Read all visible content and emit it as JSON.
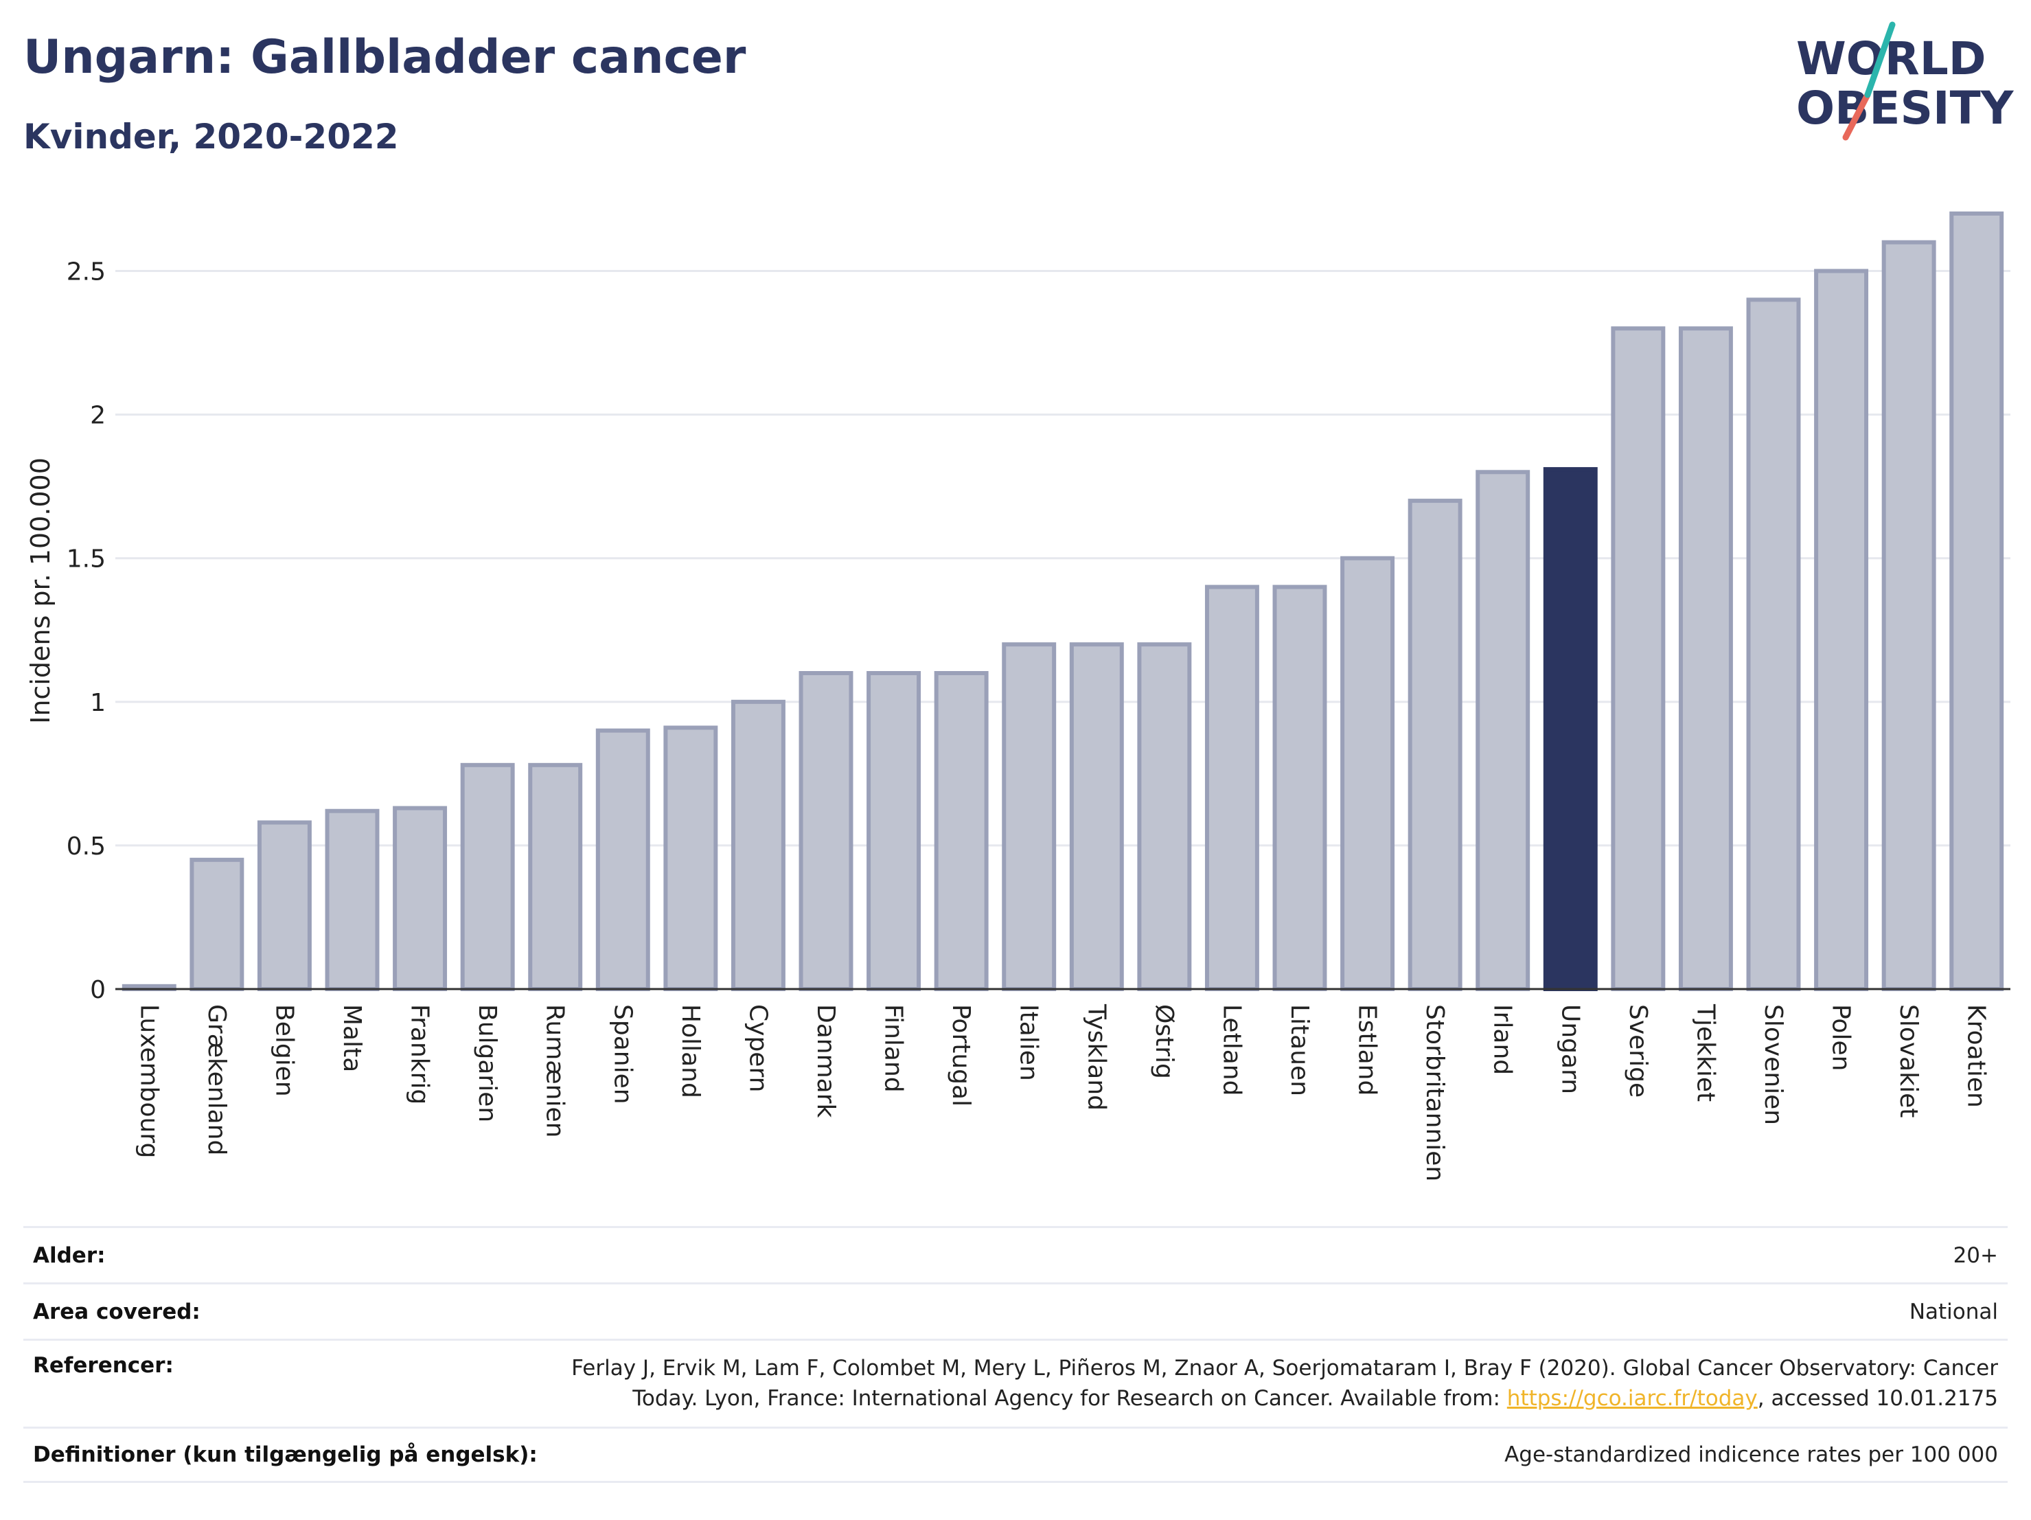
{
  "header": {
    "title": "Ungarn: Gallbladder cancer",
    "subtitle": "Kvinder, 2020-2022",
    "logo_line1": "WORLD",
    "logo_line2": "OBESITY"
  },
  "colors": {
    "title": "#2b3560",
    "bar": "#bfc3d0",
    "bar_border": "#9aa0b8",
    "highlight": "#2b3560",
    "grid": "#e6e8ee",
    "logo_teal": "#2bb5ac",
    "logo_red": "#e8685a",
    "link": "#f0b429"
  },
  "chart_data": {
    "type": "bar",
    "ylabel": "Incidens pr. 100.000",
    "xlabel": "",
    "ylim": [
      0,
      2.75
    ],
    "yticks": [
      0,
      0.5,
      1,
      1.5,
      2,
      2.5
    ],
    "ytick_labels": [
      "0",
      "0.5",
      "1",
      "1.5",
      "2",
      "2.5"
    ],
    "grid": true,
    "highlight": "Ungarn",
    "categories": [
      "Luxembourg",
      "Grækenland",
      "Belgien",
      "Malta",
      "Frankrig",
      "Bulgarien",
      "Rumænien",
      "Spanien",
      "Holland",
      "Cypern",
      "Danmark",
      "Finland",
      "Portugal",
      "Italien",
      "Tyskland",
      "Østrig",
      "Letland",
      "Litauen",
      "Estland",
      "Storbritannien",
      "Irland",
      "Ungarn",
      "Sverige",
      "Tjekkiet",
      "Slovenien",
      "Polen",
      "Slovakiet",
      "Kroatien"
    ],
    "values": [
      0.01,
      0.45,
      0.58,
      0.62,
      0.63,
      0.78,
      0.78,
      0.9,
      0.91,
      1.0,
      1.1,
      1.1,
      1.1,
      1.2,
      1.2,
      1.2,
      1.4,
      1.4,
      1.5,
      1.7,
      1.8,
      1.81,
      2.3,
      2.3,
      2.4,
      2.5,
      2.6,
      2.7
    ]
  },
  "info": {
    "rows": [
      {
        "label": "Alder:",
        "value": "20+"
      },
      {
        "label": "Area covered:",
        "value": "National"
      },
      {
        "label": "Referencer:",
        "value_line1": "Ferlay J, Ervik M, Lam F, Colombet M, Mery L, Piñeros M, Znaor A, Soerjomataram I, Bray F (2020). Global Cancer Observatory: Cancer",
        "value_line2_pre": "Today. Lyon, France: International Agency for Research on Cancer. Available from: ",
        "link": "https://gco.iarc.fr/today",
        "value_line2_post": ", accessed 10.01.2175"
      },
      {
        "label": "Definitioner (kun tilgængelig på engelsk):",
        "value": "Age-standardized indicence rates per 100 000"
      }
    ]
  }
}
